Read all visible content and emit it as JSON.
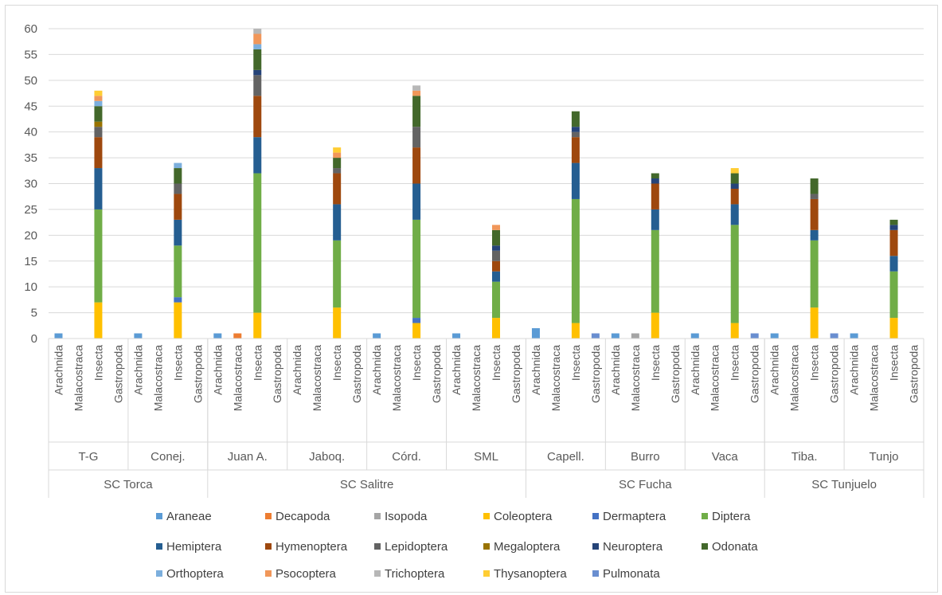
{
  "chart_data": {
    "type": "bar",
    "stacked": true,
    "title": "",
    "xlabel": "",
    "ylabel": "",
    "ylim": [
      0,
      60
    ],
    "yticks": [
      0,
      5,
      10,
      15,
      20,
      25,
      30,
      35,
      40,
      45,
      50,
      55,
      60
    ],
    "grid": true,
    "legend_position": "bottom",
    "classes": [
      "Arachnida",
      "Malacostraca",
      "Insecta",
      "Gastropoda"
    ],
    "regions": [
      {
        "name": "SC Torca",
        "sites": [
          "T-G",
          "Conej."
        ]
      },
      {
        "name": "SC Salitre",
        "sites": [
          "Juan A.",
          "Jaboq.",
          "Córd.",
          "SML"
        ]
      },
      {
        "name": "SC Fucha",
        "sites": [
          "Capell.",
          "Burro",
          "Vaca"
        ]
      },
      {
        "name": "SC Tunjuelo",
        "sites": [
          "Tiba.",
          "Tunjo"
        ]
      }
    ],
    "series": [
      {
        "name": "Araneae",
        "color": "#5b9bd5",
        "values": [
          1,
          0,
          0,
          0,
          1,
          0,
          0,
          0,
          1,
          0,
          0,
          0,
          0,
          0,
          0,
          0,
          1,
          0,
          0,
          0,
          1,
          0,
          0,
          0,
          2,
          0,
          0,
          0,
          1,
          0,
          0,
          0,
          1,
          0,
          0,
          0,
          1,
          0,
          0,
          0,
          1,
          0,
          0,
          0
        ]
      },
      {
        "name": "Decapoda",
        "color": "#ed7d31",
        "values": [
          0,
          0,
          0,
          0,
          0,
          0,
          0,
          0,
          0,
          1,
          0,
          0,
          0,
          0,
          0,
          0,
          0,
          0,
          0,
          0,
          0,
          0,
          0,
          0,
          0,
          0,
          0,
          0,
          0,
          0,
          0,
          0,
          0,
          0,
          0,
          0,
          0,
          0,
          0,
          0,
          0,
          0,
          0,
          0
        ]
      },
      {
        "name": "Isopoda",
        "color": "#a5a5a5",
        "values": [
          0,
          0,
          0,
          0,
          0,
          0,
          0,
          0,
          0,
          0,
          0,
          0,
          0,
          0,
          0,
          0,
          0,
          0,
          0,
          0,
          0,
          0,
          0,
          0,
          0,
          0,
          0,
          0,
          0,
          1,
          0,
          0,
          0,
          0,
          0,
          0,
          0,
          0,
          0,
          0,
          0,
          0,
          0,
          0
        ]
      },
      {
        "name": "Coleoptera",
        "color": "#ffc000",
        "values": [
          0,
          0,
          7,
          0,
          0,
          0,
          7,
          0,
          0,
          0,
          5,
          0,
          0,
          0,
          6,
          0,
          0,
          0,
          3,
          0,
          0,
          0,
          4,
          0,
          0,
          0,
          3,
          0,
          0,
          0,
          5,
          0,
          0,
          0,
          3,
          0,
          0,
          0,
          6,
          0,
          0,
          0,
          4,
          0
        ]
      },
      {
        "name": "Dermaptera",
        "color": "#4472c4",
        "values": [
          0,
          0,
          0,
          0,
          0,
          0,
          1,
          0,
          0,
          0,
          0,
          0,
          0,
          0,
          0,
          0,
          0,
          0,
          1,
          0,
          0,
          0,
          0,
          0,
          0,
          0,
          0,
          0,
          0,
          0,
          0,
          0,
          0,
          0,
          0,
          0,
          0,
          0,
          0,
          0,
          0,
          0,
          0,
          0
        ]
      },
      {
        "name": "Diptera",
        "color": "#70ad47",
        "values": [
          0,
          0,
          18,
          0,
          0,
          0,
          10,
          0,
          0,
          0,
          27,
          0,
          0,
          0,
          13,
          0,
          0,
          0,
          19,
          0,
          0,
          0,
          7,
          0,
          0,
          0,
          24,
          0,
          0,
          0,
          16,
          0,
          0,
          0,
          19,
          0,
          0,
          0,
          13,
          0,
          0,
          0,
          9,
          0
        ]
      },
      {
        "name": "Hemiptera",
        "color": "#255e91",
        "values": [
          0,
          0,
          8,
          0,
          0,
          0,
          5,
          0,
          0,
          0,
          7,
          0,
          0,
          0,
          7,
          0,
          0,
          0,
          7,
          0,
          0,
          0,
          2,
          0,
          0,
          0,
          7,
          0,
          0,
          0,
          4,
          0,
          0,
          0,
          4,
          0,
          0,
          0,
          2,
          0,
          0,
          0,
          3,
          0
        ]
      },
      {
        "name": "Hymenoptera",
        "color": "#9e480e",
        "values": [
          0,
          0,
          6,
          0,
          0,
          0,
          5,
          0,
          0,
          0,
          8,
          0,
          0,
          0,
          6,
          0,
          0,
          0,
          7,
          0,
          0,
          0,
          2,
          0,
          0,
          0,
          5,
          0,
          0,
          0,
          5,
          0,
          0,
          0,
          3,
          0,
          0,
          0,
          6,
          0,
          0,
          0,
          5,
          0
        ]
      },
      {
        "name": "Lepidoptera",
        "color": "#636363",
        "values": [
          0,
          0,
          2,
          0,
          0,
          0,
          2,
          0,
          0,
          0,
          4,
          0,
          0,
          0,
          1,
          0,
          0,
          0,
          4,
          0,
          0,
          0,
          2,
          0,
          0,
          0,
          1,
          0,
          0,
          0,
          0,
          0,
          0,
          0,
          0,
          0,
          0,
          0,
          1,
          0,
          0,
          0,
          0,
          0
        ]
      },
      {
        "name": "Megaloptera",
        "color": "#997300",
        "values": [
          0,
          0,
          1,
          0,
          0,
          0,
          0,
          0,
          0,
          0,
          0,
          0,
          0,
          0,
          0,
          0,
          0,
          0,
          0,
          0,
          0,
          0,
          0,
          0,
          0,
          0,
          0,
          0,
          0,
          0,
          0,
          0,
          0,
          0,
          0,
          0,
          0,
          0,
          0,
          0,
          0,
          0,
          0,
          0
        ]
      },
      {
        "name": "Neuroptera",
        "color": "#264478",
        "values": [
          0,
          0,
          0,
          0,
          0,
          0,
          0,
          0,
          0,
          0,
          1,
          0,
          0,
          0,
          0,
          0,
          0,
          0,
          0,
          0,
          0,
          0,
          1,
          0,
          0,
          0,
          1,
          0,
          0,
          0,
          1,
          0,
          0,
          0,
          1,
          0,
          0,
          0,
          0,
          0,
          0,
          0,
          1,
          0
        ]
      },
      {
        "name": "Odonata",
        "color": "#43682b",
        "values": [
          0,
          0,
          3,
          0,
          0,
          0,
          3,
          0,
          0,
          0,
          4,
          0,
          0,
          0,
          2,
          0,
          0,
          0,
          6,
          0,
          0,
          0,
          3,
          0,
          0,
          0,
          3,
          0,
          0,
          0,
          1,
          0,
          0,
          0,
          2,
          0,
          0,
          0,
          3,
          0,
          0,
          0,
          1,
          0
        ]
      },
      {
        "name": "Orthoptera",
        "color": "#7cafdd",
        "values": [
          0,
          0,
          1,
          0,
          0,
          0,
          1,
          0,
          0,
          0,
          1,
          0,
          0,
          0,
          0,
          0,
          0,
          0,
          0,
          0,
          0,
          0,
          0,
          0,
          0,
          0,
          0,
          0,
          0,
          0,
          0,
          0,
          0,
          0,
          0,
          0,
          0,
          0,
          0,
          0,
          0,
          0,
          0,
          0
        ]
      },
      {
        "name": "Psocoptera",
        "color": "#f1975a",
        "values": [
          0,
          0,
          1,
          0,
          0,
          0,
          0,
          0,
          0,
          0,
          2,
          0,
          0,
          0,
          1,
          0,
          0,
          0,
          1,
          0,
          0,
          0,
          1,
          0,
          0,
          0,
          0,
          0,
          0,
          0,
          0,
          0,
          0,
          0,
          0,
          0,
          0,
          0,
          0,
          0,
          0,
          0,
          0,
          0
        ]
      },
      {
        "name": "Trichoptera",
        "color": "#b7b7b7",
        "values": [
          0,
          0,
          0,
          0,
          0,
          0,
          0,
          0,
          0,
          0,
          1,
          0,
          0,
          0,
          0,
          0,
          0,
          0,
          1,
          0,
          0,
          0,
          0,
          0,
          0,
          0,
          0,
          0,
          0,
          0,
          0,
          0,
          0,
          0,
          0,
          0,
          0,
          0,
          0,
          0,
          0,
          0,
          0,
          0
        ]
      },
      {
        "name": "Thysanoptera",
        "color": "#ffcd33",
        "values": [
          0,
          0,
          1,
          0,
          0,
          0,
          0,
          0,
          0,
          0,
          0,
          0,
          0,
          0,
          1,
          0,
          0,
          0,
          0,
          0,
          0,
          0,
          0,
          0,
          0,
          0,
          0,
          0,
          0,
          0,
          0,
          0,
          0,
          0,
          1,
          0,
          0,
          0,
          0,
          0,
          0,
          0,
          0,
          0
        ]
      },
      {
        "name": "Pulmonata",
        "color": "#698ed0",
        "values": [
          0,
          0,
          0,
          0,
          0,
          0,
          0,
          0,
          0,
          0,
          0,
          0,
          0,
          0,
          0,
          0,
          0,
          0,
          0,
          0,
          0,
          0,
          0,
          0,
          0,
          0,
          0,
          1,
          0,
          0,
          0,
          0,
          0,
          0,
          0,
          1,
          0,
          0,
          0,
          1,
          0,
          0,
          0,
          0
        ]
      }
    ]
  }
}
